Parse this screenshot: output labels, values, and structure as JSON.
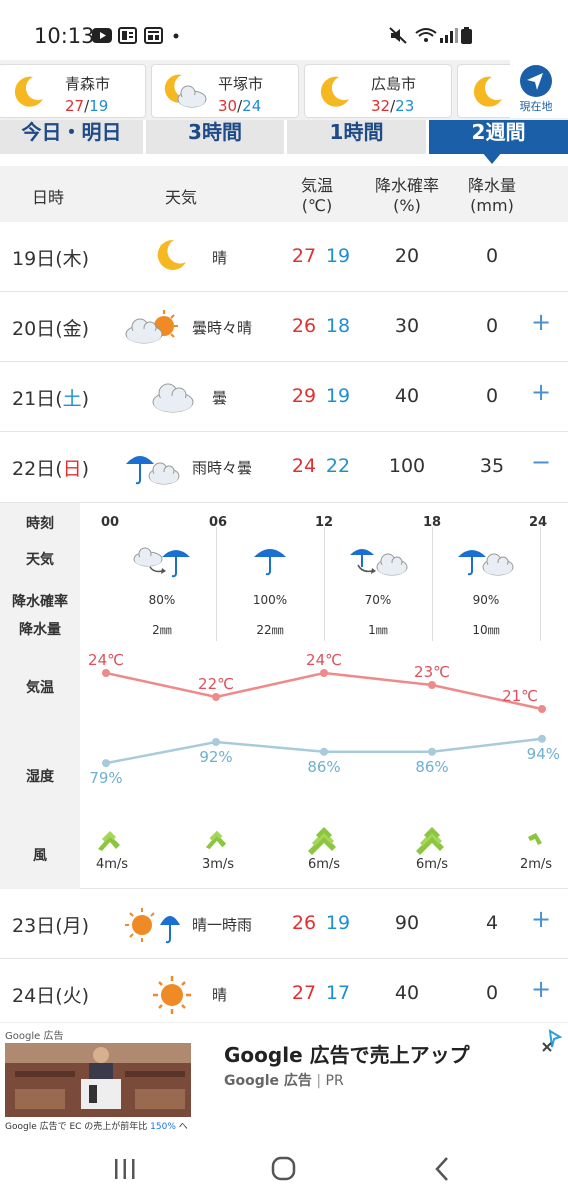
{
  "status_bar": {
    "time": "10:13",
    "icons": [
      "youtube-icon",
      "news-icon",
      "news-icon-2",
      "dot-icon",
      "mute-icon",
      "wifi-icon",
      "signal-icon",
      "battery-icon"
    ]
  },
  "cities": [
    {
      "name": "青森市",
      "hi": "27",
      "lo": "19",
      "icon": "moon"
    },
    {
      "name": "平塚市",
      "hi": "30",
      "lo": "24",
      "icon": "moon-cloud"
    },
    {
      "name": "広島市",
      "hi": "32",
      "lo": "23",
      "icon": "moon"
    },
    {
      "name": "",
      "hi": "",
      "lo": "",
      "icon": "moon"
    }
  ],
  "current_location": {
    "label": "現在地"
  },
  "tabs": [
    {
      "label": "今日・明日",
      "selected": false
    },
    {
      "label": "3時間",
      "selected": false
    },
    {
      "label": "1時間",
      "selected": false
    },
    {
      "label": "2週間",
      "selected": true
    }
  ],
  "table_header": {
    "date": "日時",
    "weather": "天気",
    "temp_line1": "気温",
    "temp_line2": "(℃)",
    "pop_line1": "降水確率",
    "pop_line2": "(%)",
    "rain_line1": "降水量",
    "rain_line2": "(mm)"
  },
  "days": [
    {
      "day": "19日",
      "dow": "(木)",
      "dow_class": "",
      "weather": "晴",
      "icon": "moon",
      "hi": "27",
      "lo": "19",
      "pop": "20",
      "rain": "0",
      "expand": ""
    },
    {
      "day": "20日",
      "dow": "(金)",
      "dow_class": "",
      "weather": "曇時々晴",
      "icon": "cloud-sun",
      "hi": "26",
      "lo": "18",
      "pop": "30",
      "rain": "0",
      "expand": "+"
    },
    {
      "day": "21日",
      "dow_pre": "(",
      "dow_char": "土",
      "dow_post": ")",
      "dow_class": "sat",
      "weather": "曇",
      "icon": "cloud",
      "hi": "29",
      "lo": "19",
      "pop": "40",
      "rain": "0",
      "expand": "+"
    },
    {
      "day": "22日",
      "dow_pre": "(",
      "dow_char": "日",
      "dow_post": ")",
      "dow_class": "sun",
      "weather": "雨時々曇",
      "icon": "rain-cloud",
      "hi": "24",
      "lo": "22",
      "pop": "100",
      "rain": "35",
      "expand": "−"
    }
  ],
  "hourly": {
    "labels": {
      "time": "時刻",
      "weather": "天気",
      "pop": "降水確率",
      "rain": "降水量",
      "temp": "気温",
      "humidity": "湿度",
      "wind": "風"
    },
    "hours": [
      "00",
      "06",
      "12",
      "18",
      "24"
    ],
    "slots": [
      {
        "pop": "80%",
        "rain": "2㎜",
        "icon": "cloud-to-rain"
      },
      {
        "pop": "100%",
        "rain": "22㎜",
        "icon": "umbrella"
      },
      {
        "pop": "70%",
        "rain": "1㎜",
        "icon": "rain-to-cloud"
      },
      {
        "pop": "90%",
        "rain": "10㎜",
        "icon": "umbrella-cloud"
      }
    ],
    "temps": [
      24,
      22,
      24,
      23,
      21
    ],
    "temp_labels": [
      "24℃",
      "22℃",
      "24℃",
      "23℃",
      "21℃"
    ],
    "temp_range": [
      20,
      25
    ],
    "humidity": [
      79,
      92,
      86,
      86,
      94
    ],
    "humidity_labels": [
      "79%",
      "92%",
      "86%",
      "86%",
      "94%"
    ],
    "humidity_range": [
      60,
      100
    ],
    "wind": [
      "4m/s",
      "3m/s",
      "6m/s",
      "6m/s",
      "2m/s"
    ],
    "colors": {
      "temp_line": "#ef8a8a",
      "humidity_line": "#a8cbdc",
      "wind_arrow": "#8cc63f"
    }
  },
  "days2": [
    {
      "day": "23日",
      "dow": "(月)",
      "weather": "晴一時雨",
      "icon": "sun-umbrella",
      "hi": "26",
      "lo": "19",
      "pop": "90",
      "rain": "4",
      "expand": "+"
    },
    {
      "day": "24日",
      "dow": "(火)",
      "weather": "晴",
      "icon": "sun",
      "hi": "27",
      "lo": "17",
      "pop": "40",
      "rain": "0",
      "expand": "+"
    }
  ],
  "ad": {
    "brand": "Google 広告",
    "headline": "Google 広告で売上アップ",
    "source": "Google 広告",
    "pr": "PR",
    "caption_pre": "Google 広告で EC の売上が前年比 ",
    "caption_pct": "150%",
    "caption_post": " へ"
  },
  "nav": {
    "icons": [
      "recent-apps-icon",
      "home-icon",
      "back-icon"
    ]
  },
  "accent": "#1a5fa8"
}
